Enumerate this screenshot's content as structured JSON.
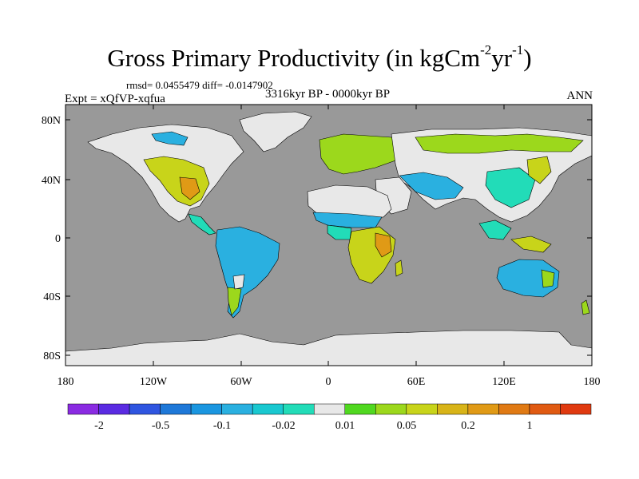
{
  "title": {
    "main": "Gross Primary Productivity (in kgCm",
    "sup1": "-2",
    "mid": "yr",
    "sup2": "-1",
    "end": ")"
  },
  "stats_line": "rmsd= 0.0455479 diff= -0.0147902",
  "subtitle": "3316kyr BP - 0000kyr BP",
  "left_label": "Expt = xQfVP-xqfua",
  "right_label": "ANN",
  "lat_labels": [
    "80N",
    "40N",
    "0",
    "40S",
    "80S"
  ],
  "lon_labels": [
    "180",
    "120W",
    "60W",
    "0",
    "60E",
    "120E",
    "180"
  ],
  "colorbar": {
    "colors": [
      "#8a2be2",
      "#5a2be2",
      "#2f55e0",
      "#1e78d8",
      "#1a96e0",
      "#2ab0e0",
      "#19c8d0",
      "#22dcb8",
      "#e8e8e8",
      "#50d820",
      "#9cd81c",
      "#c8d41a",
      "#d8b418",
      "#e09a16",
      "#e07a14",
      "#e05a12",
      "#e03a10"
    ],
    "labels": [
      "-2",
      "-0.5",
      "-0.1",
      "-0.02",
      "0.01",
      "0.05",
      "0.2",
      "1"
    ]
  },
  "colors": {
    "ocean": "#999999",
    "no_change": "#e8e8e8",
    "positive_low": "#9cd81c",
    "positive_mid": "#c8d41a",
    "positive_high": "#e09a16",
    "negative_low": "#22dcb8",
    "negative_mid": "#2ab0e0",
    "negative_high": "#1e78d8"
  }
}
